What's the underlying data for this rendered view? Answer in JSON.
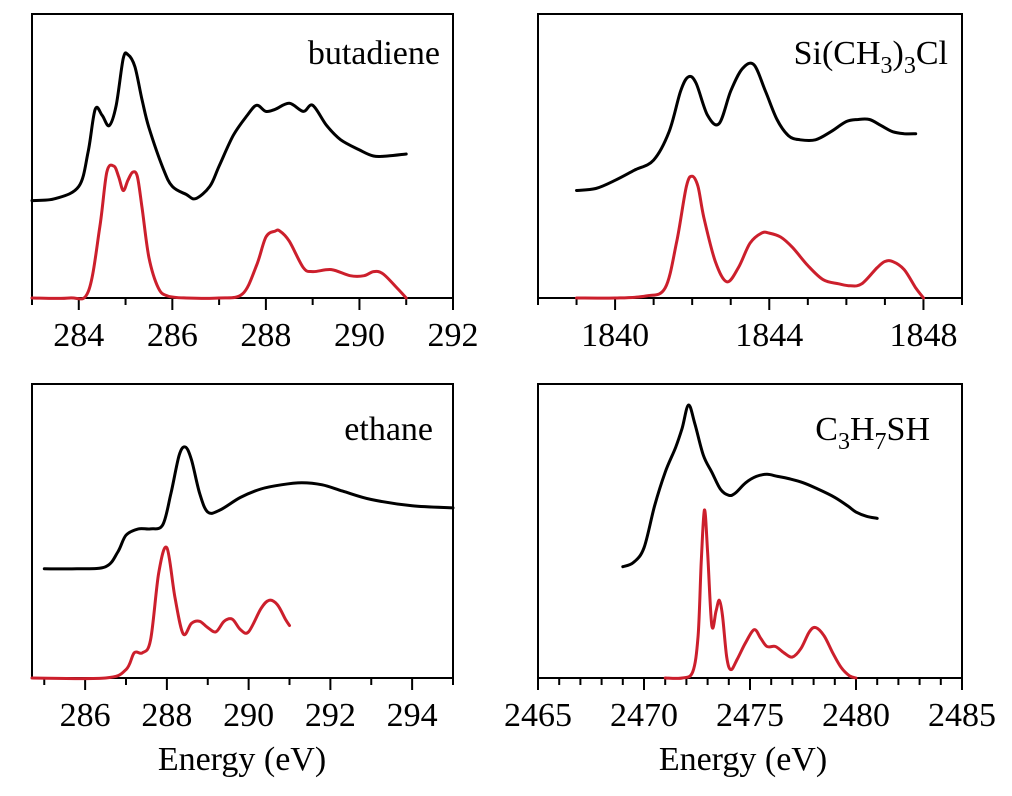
{
  "colors": {
    "experiment": "#000000",
    "simulation": "#cc1f2c",
    "axis": "#000000"
  },
  "chart_data": [
    {
      "type": "line",
      "label": "butadiene",
      "xlabel": "",
      "ylabel": "",
      "xlim": [
        283,
        292
      ],
      "ylim": [
        0,
        1.4
      ],
      "xticks_major": [
        284,
        286,
        288,
        290,
        292
      ],
      "xtick_labels": [
        "284",
        "286",
        "288",
        "290",
        "292"
      ],
      "xticks_minor": [
        283,
        285,
        287,
        289,
        291
      ],
      "grid": false,
      "series": [
        {
          "color": "#000000",
          "x": [
            283.0,
            283.5,
            284.0,
            284.2,
            284.35,
            284.5,
            284.65,
            284.8,
            284.95,
            285.05,
            285.2,
            285.35,
            285.5,
            285.8,
            286.0,
            286.3,
            286.5,
            286.8,
            287.0,
            287.3,
            287.6,
            287.8,
            288.0,
            288.2,
            288.5,
            288.8,
            289.0,
            289.3,
            289.6,
            290.0,
            290.3,
            290.6,
            291.0
          ],
          "y": [
            0.48,
            0.49,
            0.55,
            0.72,
            0.93,
            0.9,
            0.85,
            0.95,
            1.18,
            1.2,
            1.14,
            0.98,
            0.84,
            0.64,
            0.55,
            0.51,
            0.49,
            0.55,
            0.65,
            0.8,
            0.9,
            0.95,
            0.92,
            0.93,
            0.96,
            0.92,
            0.95,
            0.85,
            0.78,
            0.73,
            0.7,
            0.7,
            0.71
          ]
        },
        {
          "color": "#cc1f2c",
          "x": [
            283.0,
            283.8,
            284.2,
            284.45,
            284.6,
            284.75,
            284.85,
            284.95,
            285.05,
            285.15,
            285.25,
            285.35,
            285.5,
            285.7,
            285.9,
            286.3,
            287.0,
            287.5,
            287.8,
            288.0,
            288.2,
            288.3,
            288.5,
            288.8,
            289.0,
            289.4,
            289.8,
            290.1,
            290.3,
            290.5,
            290.8,
            291.0
          ],
          "y": [
            0.0,
            0.0,
            0.03,
            0.35,
            0.62,
            0.65,
            0.6,
            0.53,
            0.58,
            0.62,
            0.6,
            0.45,
            0.2,
            0.05,
            0.01,
            0.0,
            0.0,
            0.02,
            0.16,
            0.3,
            0.33,
            0.33,
            0.28,
            0.15,
            0.13,
            0.14,
            0.11,
            0.11,
            0.13,
            0.12,
            0.05,
            0.0
          ]
        }
      ]
    },
    {
      "type": "line",
      "label": "Si(CH3)3Cl",
      "label_parts": [
        "Si(CH",
        "3",
        ")",
        "3",
        "Cl"
      ],
      "xlabel": "",
      "ylabel": "",
      "xlim": [
        1838,
        1849
      ],
      "ylim": [
        0,
        1.4
      ],
      "xticks_major": [
        1840,
        1844,
        1848
      ],
      "xtick_labels": [
        "1840",
        "1844",
        "1848"
      ],
      "xticks_minor": [
        1838,
        1839,
        1841,
        1842,
        1843,
        1845,
        1846,
        1847,
        1849
      ],
      "grid": false,
      "series": [
        {
          "color": "#000000",
          "x": [
            1839.0,
            1839.5,
            1840.0,
            1840.5,
            1841.0,
            1841.4,
            1841.7,
            1841.9,
            1842.1,
            1842.4,
            1842.7,
            1843.0,
            1843.3,
            1843.6,
            1843.9,
            1844.2,
            1844.5,
            1844.8,
            1845.2,
            1845.6,
            1846.0,
            1846.3,
            1846.6,
            1846.9,
            1847.2,
            1847.5,
            1847.8
          ],
          "y": [
            0.53,
            0.54,
            0.58,
            0.63,
            0.68,
            0.82,
            1.02,
            1.09,
            1.06,
            0.9,
            0.86,
            1.02,
            1.13,
            1.15,
            1.02,
            0.88,
            0.8,
            0.78,
            0.78,
            0.82,
            0.87,
            0.88,
            0.88,
            0.85,
            0.82,
            0.81,
            0.81
          ]
        },
        {
          "color": "#cc1f2c",
          "x": [
            1839.0,
            1840.0,
            1840.8,
            1841.3,
            1841.6,
            1841.85,
            1842.0,
            1842.15,
            1842.3,
            1842.6,
            1842.9,
            1843.2,
            1843.5,
            1843.8,
            1844.0,
            1844.3,
            1844.6,
            1845.0,
            1845.4,
            1845.8,
            1846.1,
            1846.4,
            1846.8,
            1847.0,
            1847.2,
            1847.5,
            1847.8,
            1848.0
          ],
          "y": [
            0.0,
            0.0,
            0.01,
            0.05,
            0.28,
            0.55,
            0.6,
            0.55,
            0.4,
            0.18,
            0.08,
            0.15,
            0.27,
            0.32,
            0.32,
            0.3,
            0.25,
            0.16,
            0.09,
            0.07,
            0.06,
            0.07,
            0.15,
            0.18,
            0.18,
            0.14,
            0.05,
            0.0
          ]
        }
      ]
    },
    {
      "type": "line",
      "label": "ethane",
      "xlabel": "Energy (eV)",
      "ylabel": "",
      "xlim": [
        284.7,
        295
      ],
      "ylim": [
        0,
        1.4
      ],
      "xticks_major": [
        286,
        288,
        290,
        292,
        294
      ],
      "xtick_labels": [
        "286",
        "288",
        "290",
        "292",
        "294"
      ],
      "xticks_minor": [
        285,
        287,
        289,
        291,
        293,
        295
      ],
      "grid": false,
      "series": [
        {
          "color": "#000000",
          "x": [
            285.0,
            285.8,
            286.5,
            286.8,
            287.0,
            287.3,
            287.6,
            287.9,
            288.1,
            288.3,
            288.45,
            288.6,
            288.8,
            289.0,
            289.3,
            289.8,
            290.3,
            290.8,
            291.3,
            291.8,
            292.3,
            293.0,
            294.0,
            295.0
          ],
          "y": [
            0.52,
            0.52,
            0.53,
            0.6,
            0.68,
            0.71,
            0.71,
            0.73,
            0.88,
            1.06,
            1.1,
            1.04,
            0.88,
            0.79,
            0.8,
            0.86,
            0.9,
            0.92,
            0.93,
            0.92,
            0.89,
            0.85,
            0.82,
            0.81
          ]
        },
        {
          "color": "#cc1f2c",
          "x": [
            284.7,
            286.5,
            287.0,
            287.2,
            287.4,
            287.6,
            287.8,
            288.0,
            288.2,
            288.4,
            288.6,
            288.8,
            289.0,
            289.2,
            289.4,
            289.6,
            289.8,
            290.0,
            290.3,
            290.5,
            290.7,
            290.9,
            291.0
          ],
          "y": [
            0.0,
            0.0,
            0.04,
            0.12,
            0.12,
            0.18,
            0.5,
            0.62,
            0.38,
            0.21,
            0.26,
            0.27,
            0.24,
            0.22,
            0.27,
            0.28,
            0.23,
            0.22,
            0.33,
            0.37,
            0.35,
            0.28,
            0.25
          ]
        }
      ]
    },
    {
      "type": "line",
      "label": "C3H7SH",
      "label_parts": [
        "C",
        "3",
        "H",
        "7",
        "SH"
      ],
      "xlabel": "Energy (eV)",
      "ylabel": "",
      "xlim": [
        2465,
        2485
      ],
      "ylim": [
        0,
        1.4
      ],
      "xticks_major": [
        2465,
        2470,
        2475,
        2480,
        2485
      ],
      "xtick_labels": [
        "2465",
        "2470",
        "2475",
        "2480",
        "2485"
      ],
      "xticks_minor": [
        2466,
        2467,
        2468,
        2469,
        2471,
        2472,
        2473,
        2474,
        2476,
        2477,
        2478,
        2479,
        2481,
        2482,
        2483,
        2484
      ],
      "grid": false,
      "series": [
        {
          "color": "#000000",
          "x": [
            2469.0,
            2469.5,
            2470.0,
            2470.5,
            2471.0,
            2471.5,
            2471.8,
            2472.1,
            2472.4,
            2472.8,
            2473.2,
            2473.6,
            2474.0,
            2474.3,
            2474.8,
            2475.3,
            2475.8,
            2476.3,
            2476.8,
            2477.5,
            2478.2,
            2479.0,
            2479.6,
            2480.0,
            2480.5,
            2481.0
          ],
          "y": [
            0.53,
            0.55,
            0.62,
            0.82,
            0.98,
            1.1,
            1.19,
            1.3,
            1.21,
            1.06,
            0.98,
            0.9,
            0.87,
            0.88,
            0.93,
            0.96,
            0.97,
            0.96,
            0.95,
            0.93,
            0.9,
            0.86,
            0.82,
            0.79,
            0.77,
            0.76
          ]
        },
        {
          "color": "#cc1f2c",
          "x": [
            2471.0,
            2471.8,
            2472.3,
            2472.55,
            2472.7,
            2472.85,
            2473.0,
            2473.2,
            2473.4,
            2473.55,
            2473.7,
            2473.9,
            2474.1,
            2474.4,
            2474.8,
            2475.2,
            2475.5,
            2475.8,
            2476.2,
            2476.6,
            2477.0,
            2477.4,
            2477.8,
            2478.1,
            2478.5,
            2478.9,
            2479.3,
            2479.7,
            2480.0
          ],
          "y": [
            0.0,
            0.0,
            0.03,
            0.2,
            0.55,
            0.8,
            0.6,
            0.25,
            0.32,
            0.37,
            0.3,
            0.1,
            0.04,
            0.09,
            0.17,
            0.23,
            0.19,
            0.15,
            0.15,
            0.12,
            0.1,
            0.14,
            0.22,
            0.24,
            0.2,
            0.12,
            0.05,
            0.01,
            0.0
          ]
        }
      ]
    }
  ]
}
